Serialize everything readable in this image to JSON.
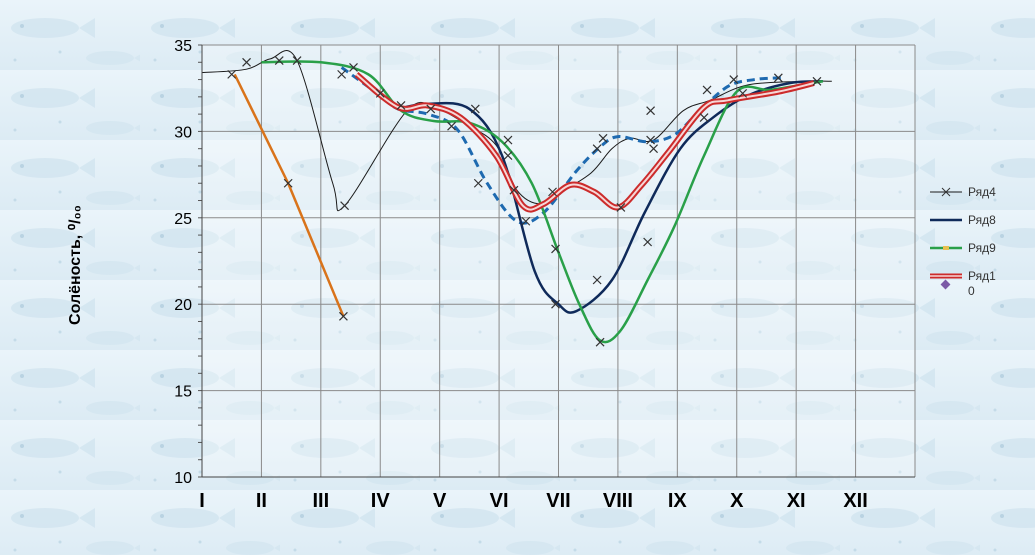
{
  "chart_data": {
    "type": "line",
    "ylabel": "Солёность, ⁰/₀₀",
    "ylim": [
      10,
      35
    ],
    "yticks": [
      10,
      15,
      20,
      25,
      30,
      35
    ],
    "xlim": [
      1,
      13
    ],
    "xticks": [
      "I",
      "II",
      "III",
      "IV",
      "V",
      "VI",
      "VII",
      "VIII",
      "IX",
      "X",
      "XI",
      "XII"
    ],
    "grid": true,
    "legend_position": "right",
    "series": [
      {
        "name": "Ряд4",
        "color": "#1a1a1a",
        "style": "thin-x",
        "points": [
          [
            1.0,
            33.4
          ],
          [
            1.75,
            33.6
          ],
          [
            2.15,
            34.2
          ],
          [
            2.6,
            34.1
          ],
          [
            3.2,
            27.0
          ],
          [
            3.4,
            25.7
          ],
          [
            4.45,
            31.2
          ],
          [
            4.95,
            31.3
          ],
          [
            5.45,
            30.4
          ],
          [
            5.95,
            29.2
          ],
          [
            6.3,
            26.6
          ],
          [
            6.7,
            25.8
          ],
          [
            7.05,
            26.5
          ],
          [
            7.55,
            27.6
          ],
          [
            7.9,
            29.0
          ],
          [
            8.2,
            29.6
          ],
          [
            8.6,
            29.5
          ],
          [
            9.1,
            31.2
          ],
          [
            9.55,
            31.8
          ],
          [
            10.2,
            32.7
          ],
          [
            11.2,
            32.9
          ],
          [
            11.6,
            32.9
          ]
        ]
      },
      {
        "name": "",
        "color": "#d9731a",
        "style": "orange",
        "points": [
          [
            1.55,
            33.3
          ],
          [
            2.45,
            27.0
          ],
          [
            3.38,
            19.3
          ]
        ]
      },
      {
        "name": "",
        "color": "#1e6ab0",
        "style": "dashed",
        "points": [
          [
            3.35,
            33.7
          ],
          [
            3.95,
            32.2
          ],
          [
            4.3,
            31.3
          ],
          [
            4.8,
            31.0
          ],
          [
            5.3,
            30.1
          ],
          [
            5.8,
            27.0
          ],
          [
            6.3,
            24.8
          ],
          [
            6.75,
            25.3
          ],
          [
            7.3,
            27.7
          ],
          [
            7.7,
            29.1
          ],
          [
            8.0,
            29.7
          ],
          [
            8.5,
            29.4
          ],
          [
            8.95,
            29.8
          ],
          [
            9.35,
            31.1
          ],
          [
            9.85,
            32.6
          ],
          [
            10.3,
            33.0
          ],
          [
            10.75,
            33.1
          ]
        ]
      },
      {
        "name": "Ряд8",
        "color": "#0f2a5a",
        "style": "thick",
        "points": [
          [
            4.3,
            31.3
          ],
          [
            4.8,
            31.6
          ],
          [
            5.5,
            31.3
          ],
          [
            6.05,
            28.6
          ],
          [
            6.6,
            21.9
          ],
          [
            7.0,
            20.0
          ],
          [
            7.3,
            19.6
          ],
          [
            7.9,
            21.4
          ],
          [
            8.45,
            25.3
          ],
          [
            9.05,
            29.0
          ],
          [
            9.6,
            30.8
          ],
          [
            10.2,
            32.1
          ],
          [
            10.9,
            32.8
          ],
          [
            11.45,
            32.9
          ]
        ]
      },
      {
        "name": "Ряд9",
        "color": "#29a049",
        "style": "green",
        "points": [
          [
            2.0,
            34.0
          ],
          [
            3.0,
            34.0
          ],
          [
            3.8,
            33.3
          ],
          [
            4.35,
            31.2
          ],
          [
            4.9,
            30.6
          ],
          [
            5.5,
            30.5
          ],
          [
            6.05,
            29.4
          ],
          [
            6.55,
            27.0
          ],
          [
            7.0,
            23.0
          ],
          [
            7.35,
            20.0
          ],
          [
            7.7,
            17.9
          ],
          [
            8.05,
            18.5
          ],
          [
            8.5,
            21.4
          ],
          [
            8.95,
            24.5
          ],
          [
            9.45,
            28.6
          ],
          [
            10.0,
            32.3
          ],
          [
            10.55,
            32.4
          ],
          [
            11.1,
            32.7
          ],
          [
            11.45,
            32.9
          ]
        ]
      },
      {
        "name": "Ряд1\n0",
        "color": "#cc2b2b",
        "style": "double-red",
        "points": [
          [
            3.6,
            33.3
          ],
          [
            4.3,
            31.4
          ],
          [
            4.8,
            31.5
          ],
          [
            5.35,
            30.8
          ],
          [
            5.95,
            28.6
          ],
          [
            6.4,
            25.7
          ],
          [
            6.75,
            25.8
          ],
          [
            7.2,
            26.9
          ],
          [
            7.6,
            26.5
          ],
          [
            8.0,
            25.6
          ],
          [
            8.4,
            26.9
          ],
          [
            8.85,
            28.8
          ],
          [
            9.45,
            31.4
          ],
          [
            9.85,
            31.8
          ],
          [
            10.7,
            32.3
          ],
          [
            11.3,
            32.8
          ]
        ]
      }
    ],
    "markers": [
      [
        1.5,
        33.3
      ],
      [
        1.75,
        34.0
      ],
      [
        2.3,
        34.1
      ],
      [
        2.6,
        34.1
      ],
      [
        2.45,
        27.0
      ],
      [
        3.38,
        19.3
      ],
      [
        3.4,
        25.7
      ],
      [
        3.35,
        33.3
      ],
      [
        3.55,
        33.7
      ],
      [
        4.0,
        32.2
      ],
      [
        4.35,
        31.5
      ],
      [
        4.85,
        31.3
      ],
      [
        5.2,
        30.3
      ],
      [
        5.6,
        31.3
      ],
      [
        5.65,
        27.0
      ],
      [
        6.15,
        29.5
      ],
      [
        6.15,
        28.6
      ],
      [
        6.25,
        26.6
      ],
      [
        6.45,
        24.8
      ],
      [
        6.9,
        26.5
      ],
      [
        6.95,
        23.2
      ],
      [
        6.95,
        20.0
      ],
      [
        7.7,
        17.8
      ],
      [
        7.65,
        21.4
      ],
      [
        7.65,
        29.0
      ],
      [
        7.75,
        29.6
      ],
      [
        8.05,
        25.6
      ],
      [
        8.55,
        29.5
      ],
      [
        8.5,
        23.6
      ],
      [
        8.55,
        31.2
      ],
      [
        8.6,
        29.0
      ],
      [
        9.45,
        30.8
      ],
      [
        9.5,
        32.4
      ],
      [
        9.95,
        33.0
      ],
      [
        10.1,
        32.2
      ],
      [
        10.7,
        33.1
      ],
      [
        11.35,
        32.9
      ]
    ]
  }
}
